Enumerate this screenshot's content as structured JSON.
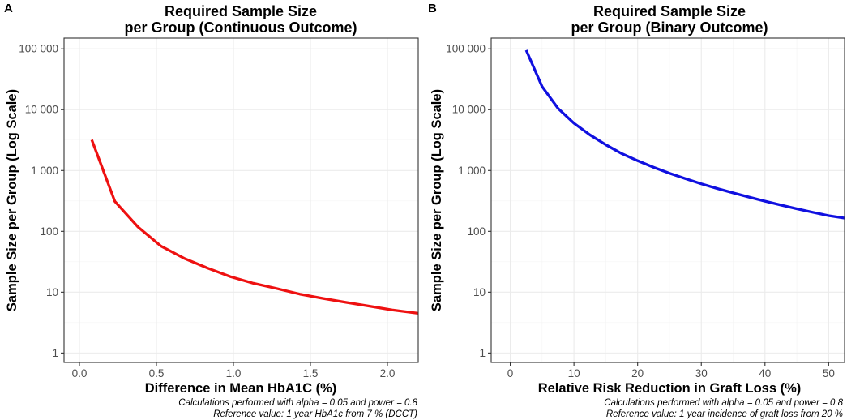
{
  "chart_data": [
    {
      "panel": "A",
      "type": "line",
      "title": [
        "Required Sample Size",
        "per Group (Continuous Outcome)"
      ],
      "xlabel": "Difference in Mean HbA1C (%)",
      "ylabel": "Sample Size per Group (Log Scale)",
      "xlim": [
        -0.1,
        2.2
      ],
      "ylim": [
        0.7,
        150000
      ],
      "log_y": true,
      "grid": true,
      "x_ticks": [
        0.0,
        0.5,
        1.0,
        1.5,
        2.0
      ],
      "x_tick_labels": [
        "0.0",
        "0.5",
        "1.0",
        "1.5",
        "2.0"
      ],
      "y_ticks": [
        1,
        10,
        100,
        1000,
        10000,
        100000
      ],
      "y_tick_labels": [
        "1",
        "10",
        "100",
        "1 000",
        "10 000",
        "100 000"
      ],
      "series": [
        {
          "color": "#ee1111",
          "x": [
            0.08,
            0.23,
            0.38,
            0.53,
            0.68,
            0.83,
            0.98,
            1.13,
            1.28,
            1.43,
            1.58,
            1.73,
            1.88,
            2.03,
            2.2
          ],
          "y": [
            3200,
            310,
            118,
            57,
            36,
            25,
            18,
            14,
            11.5,
            9.3,
            7.9,
            6.8,
            5.9,
            5.1,
            4.5
          ]
        }
      ],
      "captions": [
        "Calculations performed with alpha = 0.05 and power = 0.8",
        "Reference value: 1 year HbA1c from 7 % (DCCT)"
      ]
    },
    {
      "panel": "B",
      "type": "line",
      "title": [
        "Required Sample Size",
        "per Group (Binary Outcome)"
      ],
      "xlabel": "Relative Risk Reduction in Graft Loss (%)",
      "ylabel": "Sample Size per Group (Log Scale)",
      "xlim": [
        -3,
        52.5
      ],
      "ylim": [
        0.7,
        150000
      ],
      "log_y": true,
      "grid": true,
      "x_ticks": [
        0,
        10,
        20,
        30,
        40,
        50
      ],
      "x_tick_labels": [
        "0",
        "10",
        "20",
        "30",
        "40",
        "50"
      ],
      "y_ticks": [
        1,
        10,
        100,
        1000,
        10000,
        100000
      ],
      "y_tick_labels": [
        "1",
        "10",
        "100",
        "1 000",
        "10 000",
        "100 000"
      ],
      "series": [
        {
          "color": "#1010e0",
          "x": [
            2.5,
            5,
            7.5,
            10,
            12.5,
            15,
            17.5,
            20,
            22.5,
            25,
            27.5,
            30,
            32.5,
            35,
            37.5,
            40,
            42.5,
            45,
            47.5,
            50,
            52.5
          ],
          "y": [
            95000,
            24000,
            10500,
            6000,
            3850,
            2650,
            1900,
            1450,
            1130,
            900,
            735,
            605,
            505,
            428,
            365,
            313,
            270,
            235,
            206,
            181,
            165
          ]
        }
      ],
      "captions": [
        "Calculations performed with alpha = 0.05 and power = 0.8",
        "Reference value: 1 year incidence of graft loss from 20 %"
      ]
    }
  ]
}
